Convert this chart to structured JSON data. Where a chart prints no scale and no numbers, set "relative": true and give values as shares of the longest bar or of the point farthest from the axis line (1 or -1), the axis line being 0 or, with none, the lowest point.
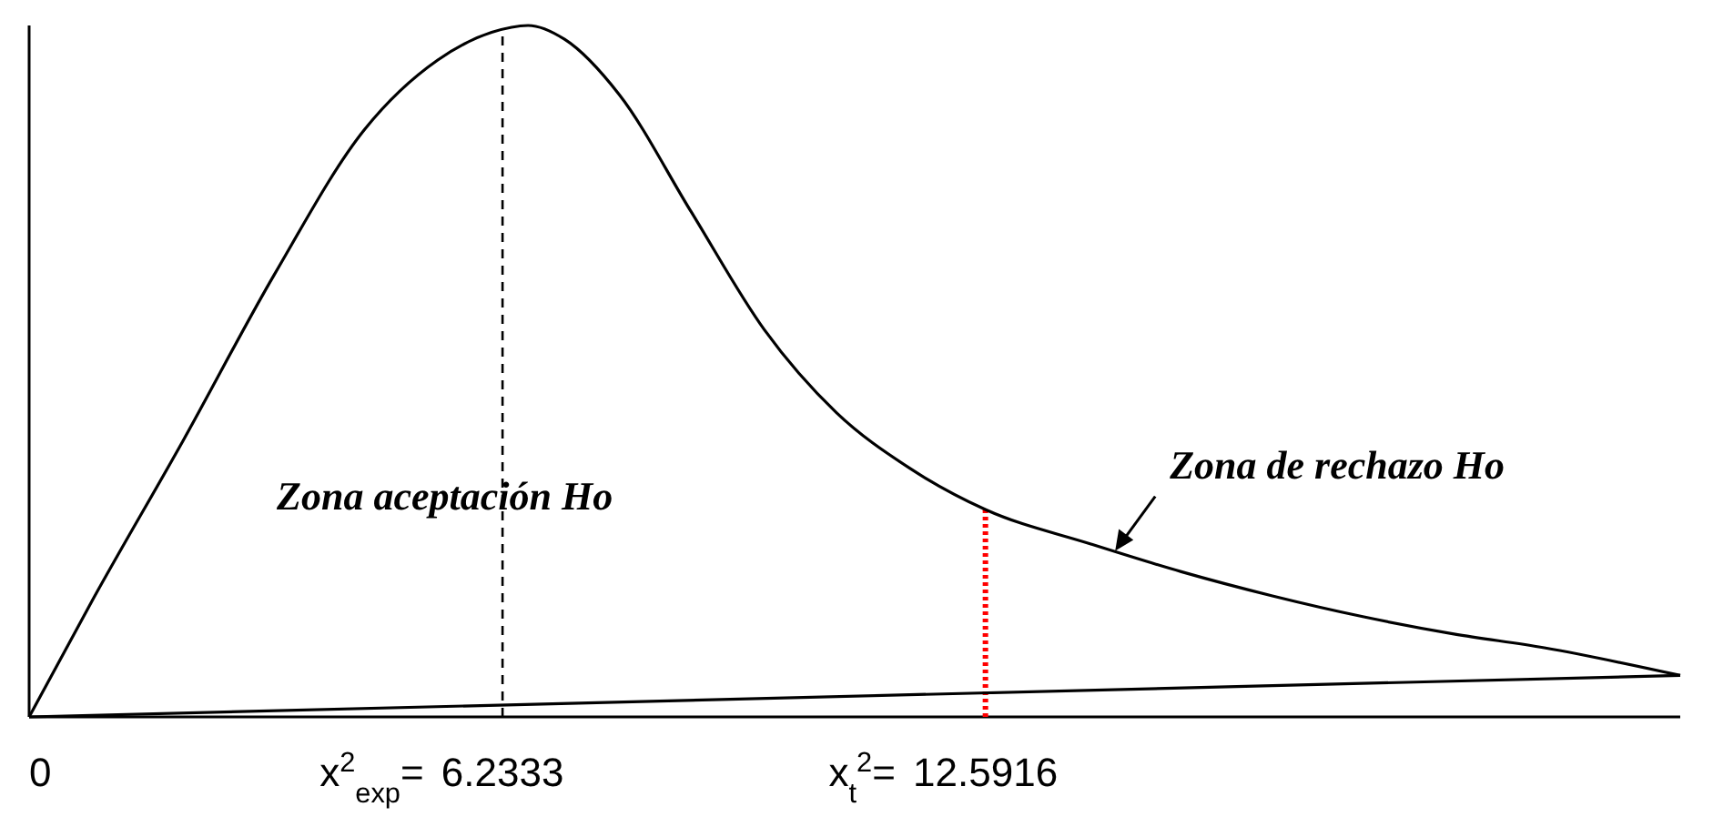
{
  "chart_data": {
    "type": "line",
    "relative": true,
    "tick_labels": "x",
    "line_style": "solid",
    "xlim": [
      0,
      21.74
    ],
    "xticks": [
      0,
      6.2333,
      12.5916
    ],
    "series": [
      {
        "color": "#000000",
        "x": [
          0,
          0.84,
          2.03,
          3.23,
          4.42,
          5.38,
          6.09,
          6.57,
          7.05,
          7.77,
          8.72,
          9.68,
          10.63,
          11.59,
          12.59,
          13.98,
          15.17,
          16.37,
          17.56,
          18.76,
          19.95,
          21.74
        ],
        "values": [
          0,
          0.17,
          0.4,
          0.64,
          0.85,
          0.95,
          0.99,
          1.0,
          0.98,
          0.9,
          0.73,
          0.56,
          0.44,
          0.36,
          0.3,
          0.25,
          0.21,
          0.175,
          0.145,
          0.12,
          0.1,
          0.06
        ]
      },
      {
        "color": "#000000",
        "x": [
          0,
          21.74
        ],
        "values": [
          0,
          0.06
        ]
      }
    ],
    "ref_lines": [
      {
        "axis": "x",
        "value": 6.2333,
        "color": "#000000",
        "line_style": "dashed"
      },
      {
        "axis": "x",
        "value": 12.5916,
        "color": "#ff0000",
        "line_style": "dotted"
      }
    ],
    "annotations": [
      "Zona aceptación Ho",
      {
        "text": "Zona de rechazo  Ho",
        "x": 14.3,
        "y": 0.24
      },
      "x$^{2}$$_{exp}$=",
      "x$_{t}$$^{2}$="
    ]
  }
}
